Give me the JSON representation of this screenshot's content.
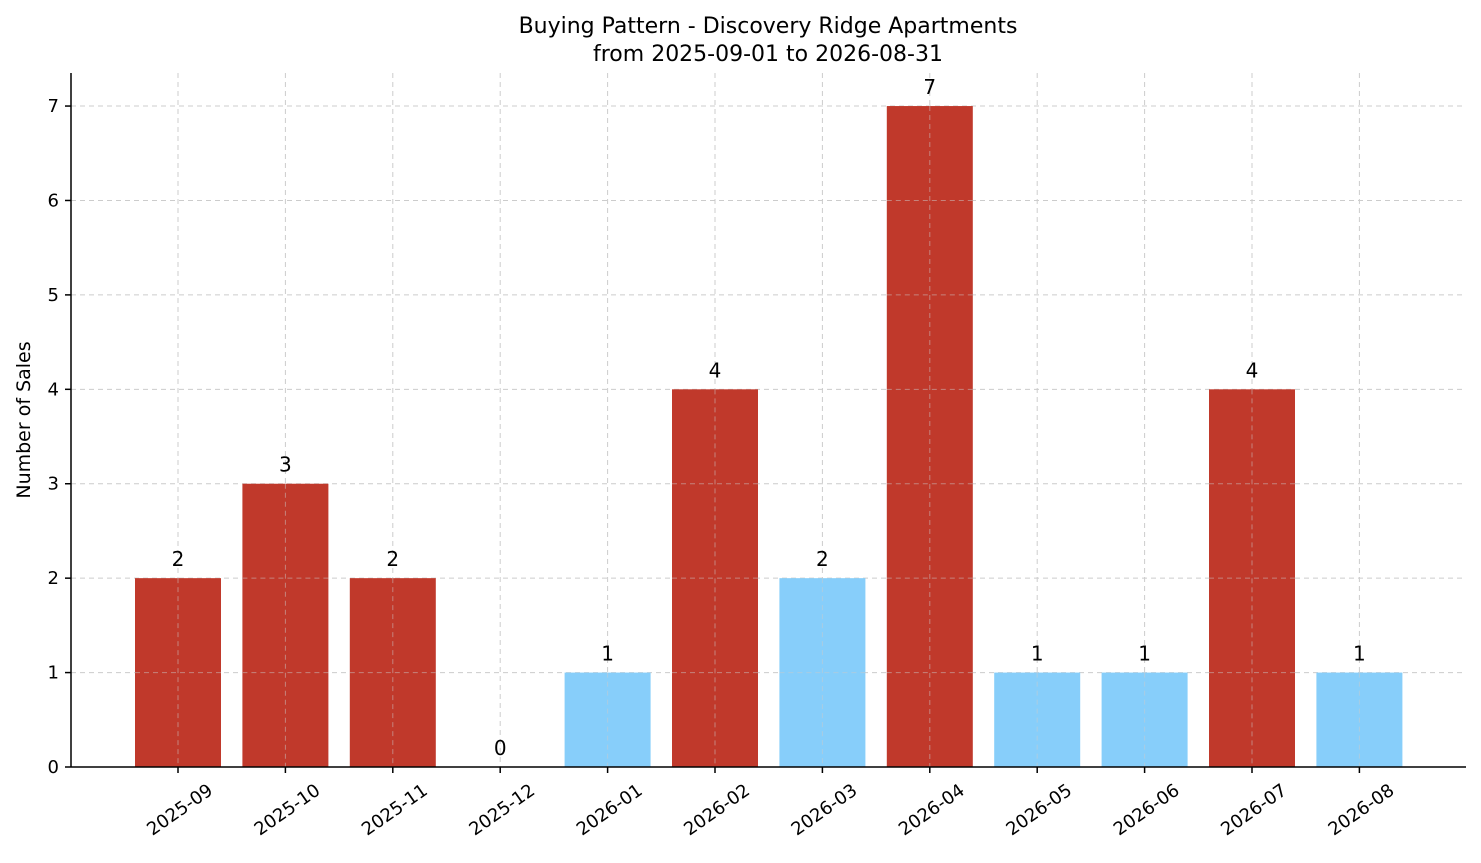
{
  "chart_data": {
    "type": "bar",
    "title": "Buying Pattern - Discovery Ridge Apartments",
    "subtitle": "from 2025-09-01 to 2026-08-31",
    "xlabel": "",
    "ylabel": "Number of Sales",
    "categories": [
      "2025-09",
      "2025-10",
      "2025-11",
      "2025-12",
      "2026-01",
      "2026-02",
      "2026-03",
      "2026-04",
      "2026-05",
      "2026-06",
      "2026-07",
      "2026-08"
    ],
    "values": [
      2,
      3,
      2,
      0,
      1,
      4,
      2,
      7,
      1,
      1,
      4,
      1
    ],
    "bar_colors": [
      "#c0392b",
      "#c0392b",
      "#c0392b",
      "#c0392b",
      "#87cefa",
      "#c0392b",
      "#87cefa",
      "#c0392b",
      "#87cefa",
      "#87cefa",
      "#c0392b",
      "#87cefa"
    ],
    "ylim": [
      0,
      7.35
    ],
    "yticks": [
      0,
      1,
      2,
      3,
      4,
      5,
      6,
      7
    ],
    "grid": true,
    "data_labels": true
  }
}
